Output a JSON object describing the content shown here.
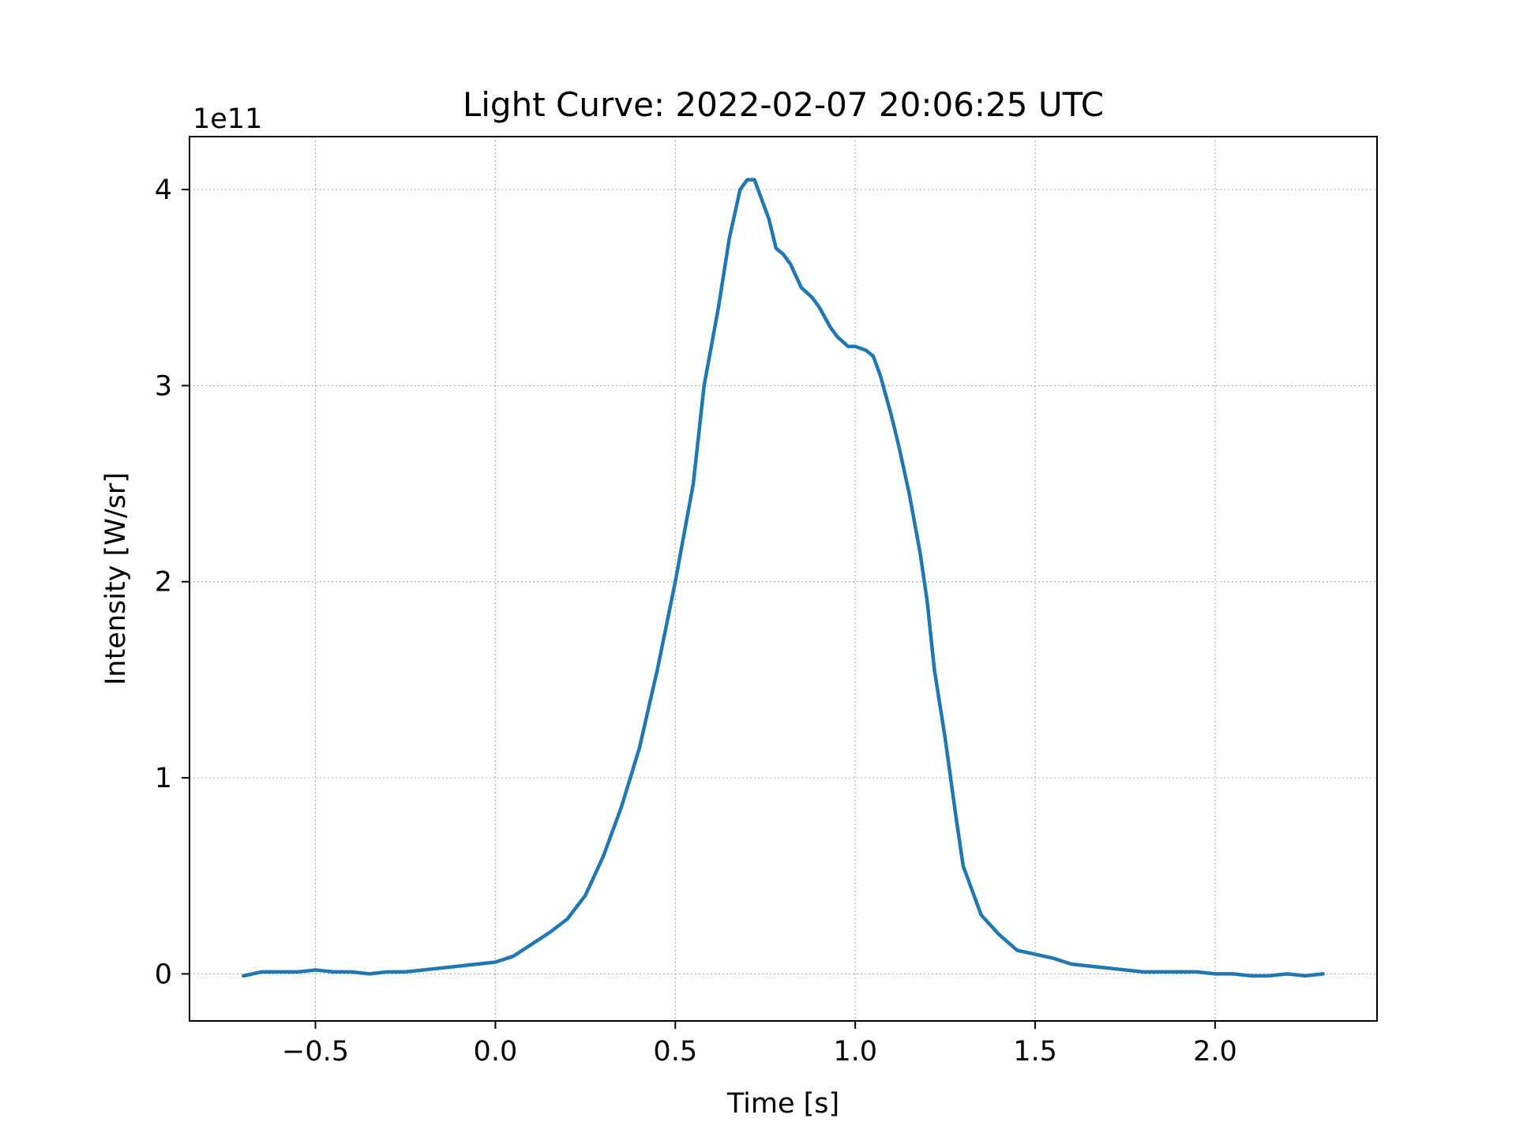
{
  "chart_data": {
    "type": "line",
    "title": "Light Curve: 2022-02-07 20:06:25 UTC",
    "xlabel": "Time [s]",
    "ylabel": "Intensity [W/sr]",
    "y_offset_label": "1e11",
    "y_multiplier": 100000000000,
    "xlim": [
      -0.85,
      2.45
    ],
    "ylim": [
      -0.24,
      4.27
    ],
    "x_ticks": [
      -0.5,
      0.0,
      0.5,
      1.0,
      1.5,
      2.0
    ],
    "x_tick_labels": [
      "−0.5",
      "0.0",
      "0.5",
      "1.0",
      "1.5",
      "2.0"
    ],
    "y_ticks": [
      0,
      1,
      2,
      3,
      4
    ],
    "y_tick_labels": [
      "0",
      "1",
      "2",
      "3",
      "4"
    ],
    "grid": true,
    "line_color": "#1f77b4",
    "series": [
      {
        "x": [
          -0.7,
          -0.65,
          -0.6,
          -0.55,
          -0.5,
          -0.45,
          -0.4,
          -0.35,
          -0.3,
          -0.25,
          -0.2,
          -0.15,
          -0.1,
          -0.05,
          0.0,
          0.05,
          0.1,
          0.15,
          0.2,
          0.25,
          0.3,
          0.35,
          0.4,
          0.45,
          0.5,
          0.55,
          0.58,
          0.6,
          0.62,
          0.65,
          0.68,
          0.7,
          0.72,
          0.74,
          0.76,
          0.78,
          0.8,
          0.82,
          0.85,
          0.88,
          0.9,
          0.93,
          0.95,
          0.98,
          1.0,
          1.03,
          1.05,
          1.07,
          1.1,
          1.12,
          1.15,
          1.18,
          1.2,
          1.22,
          1.25,
          1.28,
          1.3,
          1.32,
          1.35,
          1.4,
          1.45,
          1.5,
          1.55,
          1.6,
          1.65,
          1.7,
          1.75,
          1.8,
          1.85,
          1.9,
          1.95,
          2.0,
          2.05,
          2.1,
          2.15,
          2.2,
          2.25,
          2.3
        ],
        "y": [
          -0.01,
          0.01,
          0.01,
          0.01,
          0.02,
          0.01,
          0.01,
          0.0,
          0.01,
          0.01,
          0.02,
          0.03,
          0.04,
          0.05,
          0.06,
          0.09,
          0.15,
          0.21,
          0.28,
          0.4,
          0.6,
          0.85,
          1.15,
          1.55,
          2.0,
          2.5,
          3.0,
          3.2,
          3.4,
          3.75,
          4.0,
          4.05,
          4.05,
          3.95,
          3.85,
          3.7,
          3.67,
          3.62,
          3.5,
          3.45,
          3.4,
          3.3,
          3.25,
          3.2,
          3.2,
          3.18,
          3.15,
          3.05,
          2.85,
          2.7,
          2.45,
          2.15,
          1.9,
          1.55,
          1.2,
          0.8,
          0.55,
          0.45,
          0.3,
          0.2,
          0.12,
          0.1,
          0.08,
          0.05,
          0.04,
          0.03,
          0.02,
          0.01,
          0.01,
          0.01,
          0.01,
          0.0,
          0.0,
          -0.01,
          -0.01,
          0.0,
          -0.01,
          0.0
        ]
      }
    ]
  }
}
